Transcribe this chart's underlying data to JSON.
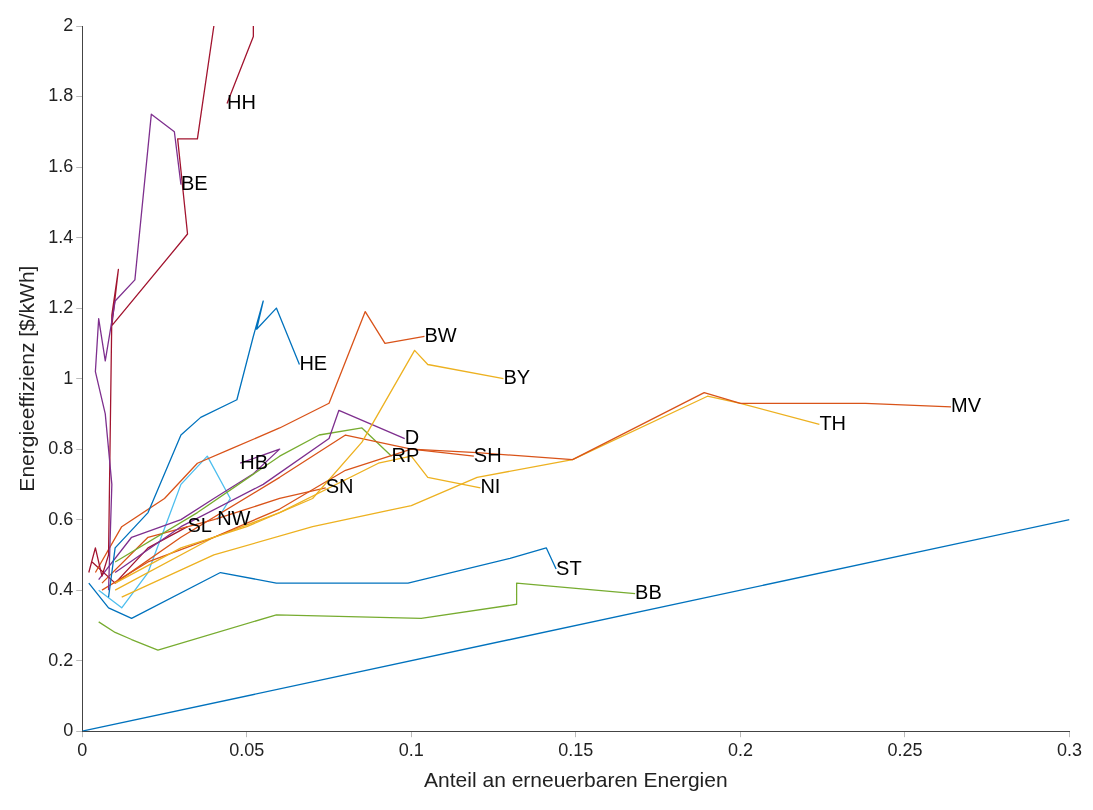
{
  "chart_data": {
    "type": "line",
    "xlabel": "Anteil an erneuerbaren Energien",
    "ylabel": "Energieeffizienz [$/kWh]",
    "xlim": [
      0,
      0.3
    ],
    "ylim": [
      0,
      2
    ],
    "xticks": [
      0,
      0.05,
      0.1,
      0.15,
      0.2,
      0.25,
      0.3
    ],
    "yticks": [
      0,
      0.2,
      0.4,
      0.6,
      0.8,
      1,
      1.2,
      1.4,
      1.6,
      1.8,
      2
    ],
    "grid": false,
    "legend": false,
    "marker": "none",
    "line_style": "solid",
    "series": [
      {
        "name": "BE",
        "color": "#7e2f8e",
        "x": [
          0.008,
          0.009,
          0.007,
          0.004,
          0.005,
          0.007,
          0.01,
          0.016,
          0.021,
          0.028,
          0.03
        ],
        "values": [
          0.4,
          0.7,
          0.9,
          1.02,
          1.17,
          1.05,
          1.22,
          1.28,
          1.75,
          1.7,
          1.55
        ]
      },
      {
        "name": "HH",
        "color": "#a2142f",
        "x": [
          0.002,
          0.004,
          0.006,
          0.008,
          0.009,
          0.011,
          0.009,
          0.032,
          0.029,
          0.035,
          0.04,
          0.046,
          0.052,
          0.052,
          0.044
        ],
        "values": [
          0.45,
          0.52,
          0.44,
          0.5,
          1.18,
          1.31,
          1.15,
          1.41,
          1.68,
          1.68,
          2.0,
          null,
          2.0,
          1.97,
          1.78
        ]
      },
      {
        "name": "HE",
        "color": "#0072bd",
        "x": [
          0.008,
          0.01,
          0.02,
          0.03,
          0.036,
          0.047,
          0.052,
          0.055,
          0.053,
          0.059,
          0.066
        ],
        "values": [
          0.38,
          0.52,
          0.62,
          0.84,
          0.89,
          0.94,
          1.12,
          1.22,
          1.14,
          1.2,
          1.04
        ]
      },
      {
        "name": "BW",
        "color": "#d95319",
        "x": [
          0.004,
          0.012,
          0.025,
          0.035,
          0.045,
          0.06,
          0.075,
          0.086,
          0.092,
          0.104
        ],
        "values": [
          0.45,
          0.58,
          0.66,
          0.76,
          0.8,
          0.86,
          0.93,
          1.19,
          1.1,
          1.12
        ]
      },
      {
        "name": "BY",
        "color": "#edb120",
        "x": [
          0.01,
          0.03,
          0.05,
          0.07,
          0.085,
          0.101,
          0.105,
          0.128
        ],
        "values": [
          0.42,
          0.52,
          0.58,
          0.66,
          0.82,
          1.08,
          1.04,
          1.0
        ]
      },
      {
        "name": "MV",
        "color": "#d95319",
        "x": [
          0.006,
          0.02,
          0.04,
          0.06,
          0.08,
          0.1,
          0.12,
          0.149,
          0.189,
          0.2,
          0.238,
          0.264
        ],
        "values": [
          0.4,
          0.48,
          0.55,
          0.63,
          0.74,
          0.8,
          0.79,
          0.77,
          0.96,
          0.93,
          0.93,
          0.92
        ]
      },
      {
        "name": "TH",
        "color": "#edb120",
        "x": [
          0.012,
          0.04,
          0.07,
          0.1,
          0.12,
          0.149,
          0.19,
          0.2,
          0.224
        ],
        "values": [
          0.38,
          0.5,
          0.58,
          0.64,
          0.72,
          0.77,
          0.95,
          0.93,
          0.87
        ]
      },
      {
        "name": "SH",
        "color": "#d95319",
        "x": [
          0.01,
          0.03,
          0.06,
          0.08,
          0.1,
          0.119
        ],
        "values": [
          0.42,
          0.55,
          0.72,
          0.84,
          0.8,
          0.78
        ]
      },
      {
        "name": "D",
        "color": "#7e2f8e",
        "x": [
          0.01,
          0.03,
          0.055,
          0.075,
          0.078,
          0.098
        ],
        "values": [
          0.45,
          0.58,
          0.7,
          0.83,
          0.91,
          0.83
        ]
      },
      {
        "name": "RP",
        "color": "#77ac30",
        "x": [
          0.01,
          0.035,
          0.06,
          0.072,
          0.085,
          0.094
        ],
        "values": [
          0.48,
          0.62,
          0.78,
          0.84,
          0.86,
          0.78
        ]
      },
      {
        "name": "NI",
        "color": "#edb120",
        "x": [
          0.01,
          0.04,
          0.06,
          0.09,
          0.1,
          0.105,
          0.121
        ],
        "values": [
          0.4,
          0.55,
          0.62,
          0.76,
          0.78,
          0.72,
          0.69
        ]
      },
      {
        "name": "SN",
        "color": "#d95319",
        "x": [
          0.006,
          0.02,
          0.04,
          0.06,
          0.074
        ],
        "values": [
          0.42,
          0.55,
          0.6,
          0.66,
          0.69
        ]
      },
      {
        "name": "HB",
        "color": "#7e2f8e",
        "x": [
          0.005,
          0.015,
          0.03,
          0.04,
          0.052,
          0.06,
          0.048
        ],
        "values": [
          0.43,
          0.55,
          0.6,
          0.66,
          0.73,
          0.8,
          0.76
        ]
      },
      {
        "name": "SL",
        "color": "#a2142f",
        "x": [
          0.003,
          0.01,
          0.02,
          0.032
        ],
        "values": [
          0.48,
          0.42,
          0.52,
          0.58
        ]
      },
      {
        "name": "NW",
        "color": "#4dbeee",
        "x": [
          0.005,
          0.012,
          0.02,
          0.03,
          0.038,
          0.045,
          0.041
        ],
        "values": [
          0.4,
          0.35,
          0.45,
          0.7,
          0.78,
          0.66,
          0.6
        ]
      },
      {
        "name": "ST",
        "color": "#0072bd",
        "x": [
          0.002,
          0.008,
          0.015,
          0.042,
          0.059,
          0.099,
          0.13,
          0.141,
          0.144
        ],
        "values": [
          0.42,
          0.35,
          0.32,
          0.45,
          0.42,
          0.42,
          0.49,
          0.52,
          0.46
        ]
      },
      {
        "name": "BB",
        "color": "#77ac30",
        "x": [
          0.005,
          0.01,
          0.015,
          0.023,
          0.059,
          0.103,
          0.132,
          0.132,
          0.168
        ],
        "values": [
          0.31,
          0.28,
          0.26,
          0.23,
          0.33,
          0.32,
          0.36,
          0.42,
          0.39
        ]
      },
      {
        "color": "#0072bd",
        "x": [
          0,
          0.3
        ],
        "values": [
          0,
          0.6
        ]
      }
    ]
  }
}
